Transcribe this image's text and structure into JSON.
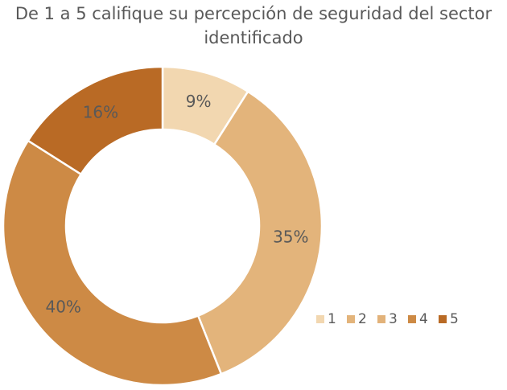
{
  "chart_data": {
    "type": "pie",
    "title": "De 1 a 5 califique su percepción de seguridad del sector identificado",
    "categories": [
      "1",
      "2",
      "3",
      "4",
      "5"
    ],
    "values": [
      9,
      35,
      0,
      40,
      16
    ],
    "labels": [
      "9%",
      "35%",
      "",
      "40%",
      "16%"
    ],
    "colors": [
      "#f2d7b0",
      "#e3b47b",
      "#e2b27a",
      "#cd8a45",
      "#b96a25"
    ],
    "legend_position": "bottom-right",
    "donut": true
  }
}
